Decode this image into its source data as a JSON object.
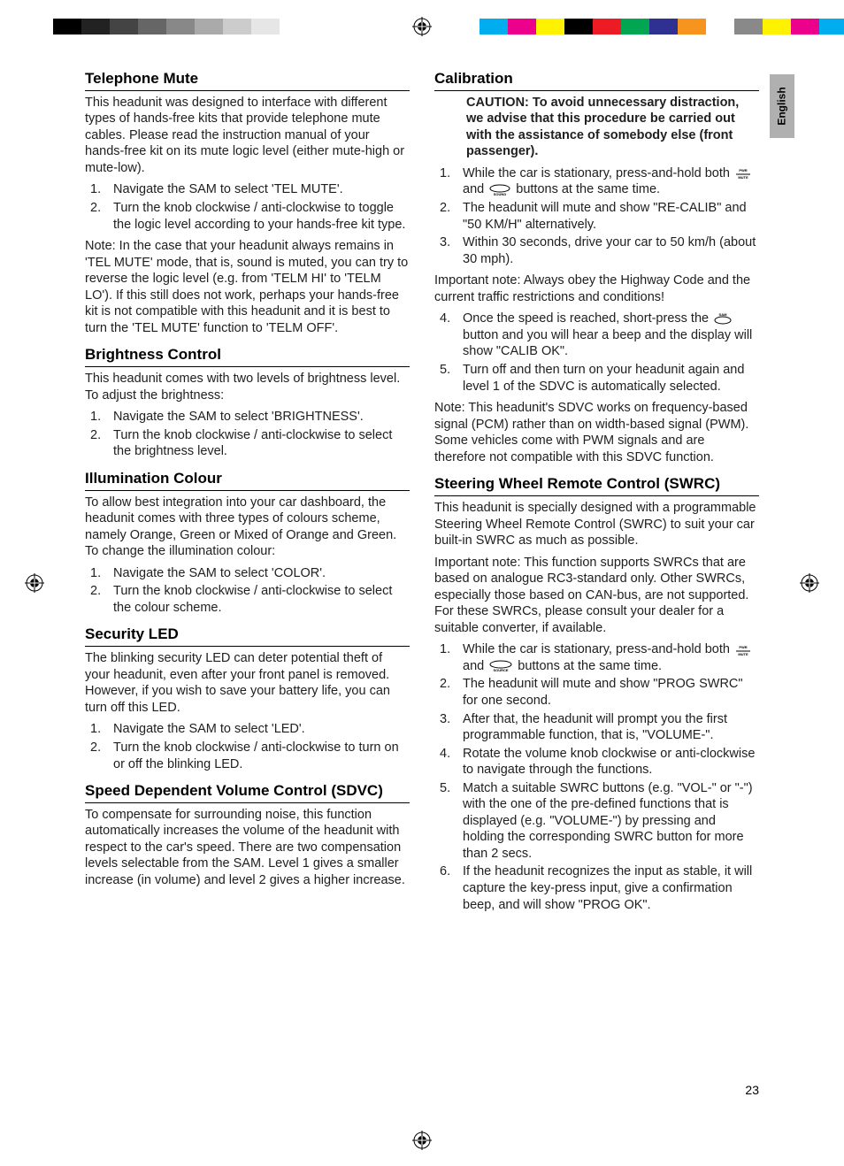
{
  "side_tab": "English",
  "page_number": "23",
  "print_bw_colors": [
    "#000000",
    "#222222",
    "#444444",
    "#666666",
    "#888888",
    "#aaaaaa",
    "#cccccc",
    "#e6e6e6",
    "#ffffff"
  ],
  "print_colors": [
    "#00aeef",
    "#ec008c",
    "#fff200",
    "#000000",
    "#ed1c24",
    "#00a651",
    "#2e3192",
    "#f7941d",
    "#fff",
    "#898989",
    "#fff200",
    "#ec008c",
    "#00aeef"
  ],
  "left": {
    "s1": {
      "title": "Telephone Mute",
      "p1": "This headunit was designed to interface with different types of hands-free kits that provide telephone mute cables. Please read the instruction manual of your hands-free kit on its mute logic level (either mute-high or mute-low).",
      "li1": "Navigate the SAM to select 'TEL MUTE'.",
      "li2": "Turn the knob clockwise / anti-clockwise to toggle the logic level according to your hands-free kit type.",
      "note": "Note: In the case that your headunit always remains in 'TEL MUTE' mode, that is, sound is muted, you can try to reverse the logic level (e.g. from 'TELM HI' to 'TELM LO'). If this still does not work, perhaps your hands-free kit is not compatible with this headunit and it is best to turn the 'TEL MUTE' function to 'TELM OFF'."
    },
    "s2": {
      "title": "Brightness Control",
      "p1": "This headunit comes with two levels of brightness level. To adjust the brightness:",
      "li1": "Navigate the SAM to select 'BRIGHTNESS'.",
      "li2": "Turn the knob clockwise / anti-clockwise to select the brightness level."
    },
    "s3": {
      "title": "Illumination Colour",
      "p1": "To allow best integration into your car dashboard, the headunit comes with three types of colours scheme, namely Orange, Green or Mixed of Orange and Green. To change the illumination colour:",
      "li1": "Navigate the SAM to select 'COLOR'.",
      "li2": "Turn the knob clockwise / anti-clockwise to select the colour scheme."
    },
    "s4": {
      "title": "Security LED",
      "p1": "The blinking security LED can deter potential theft of your headunit, even after your front panel is removed. However, if you wish to save your battery life, you can turn off this LED.",
      "li1": "Navigate the SAM to select 'LED'.",
      "li2": "Turn the knob clockwise / anti-clockwise to turn on or off the blinking LED."
    },
    "s5": {
      "title": "Speed Dependent Volume Control (SDVC)",
      "p1": "To compensate for surrounding noise, this function automatically increases the volume of the headunit with respect to the car's speed. There are two compensation levels selectable from the SAM. Level 1 gives a smaller increase (in volume) and level 2 gives a higher increase."
    }
  },
  "right": {
    "s1": {
      "title": "Calibration",
      "caution": "CAUTION: To avoid unnecessary distraction, we advise that this procedure be carried out with the assistance of somebody else (front passenger).",
      "li1a": "While the car is stationary, press-and-hold both ",
      "li1b": " and ",
      "li1c": " buttons at the same time.",
      "li2": "The headunit will mute and show \"RE-CALIB\" and \"50 KM/H\" alternatively.",
      "li3": "Within 30 seconds, drive your car to 50 km/h (about 30 mph).",
      "important": "Important note: Always obey the Highway Code and the current traffic restrictions and conditions!",
      "li4a": "Once the speed is reached, short-press the ",
      "li4b": " button and you will hear a beep and the display will show \"CALIB OK\".",
      "li5": "Turn off and then turn on your headunit again and level 1 of the SDVC is automatically selected.",
      "note": "Note: This headunit's SDVC works on frequency-based signal (PCM) rather than on width-based signal (PWM). Some vehicles come with PWM signals and are therefore not compatible with this SDVC function."
    },
    "s2": {
      "title": "Steering Wheel Remote Control (SWRC)",
      "p1": "This headunit is specially designed with a programmable Steering Wheel Remote Control (SWRC) to suit your car built-in SWRC as much as possible.",
      "important": "Important note: This function supports SWRCs that are based on analogue RC3-standard only. Other SWRCs, especially those based on CAN-bus, are not supported. For these SWRCs, please consult your dealer for a suitable converter, if available.",
      "li1a": "While the car is stationary, press-and-hold both ",
      "li1b": " and ",
      "li1c": " buttons at the same time.",
      "li2": "The headunit will mute and show \"PROG SWRC\" for one second.",
      "li3": "After that, the headunit will prompt you the first programmable function, that is, \"VOLUME-\".",
      "li4": "Rotate the volume knob clockwise or anti-clockwise to navigate through the functions.",
      "li5": "Match a suitable SWRC buttons (e.g. \"VOL-\" or \"-\") with the one of the pre-defined functions that is displayed (e.g. \"VOLUME-\") by pressing and holding the corresponding SWRC button for more than 2 secs.",
      "li6": "If the headunit recognizes the input as stable, it will capture the key-press input, give a confirmation beep, and will show \"PROG OK\"."
    }
  },
  "icons": {
    "pwr_mute": {
      "top": "PWR",
      "bottom": "MUTE"
    },
    "sound": "SOUND",
    "source": "SOURCE",
    "sam": "SAM"
  }
}
